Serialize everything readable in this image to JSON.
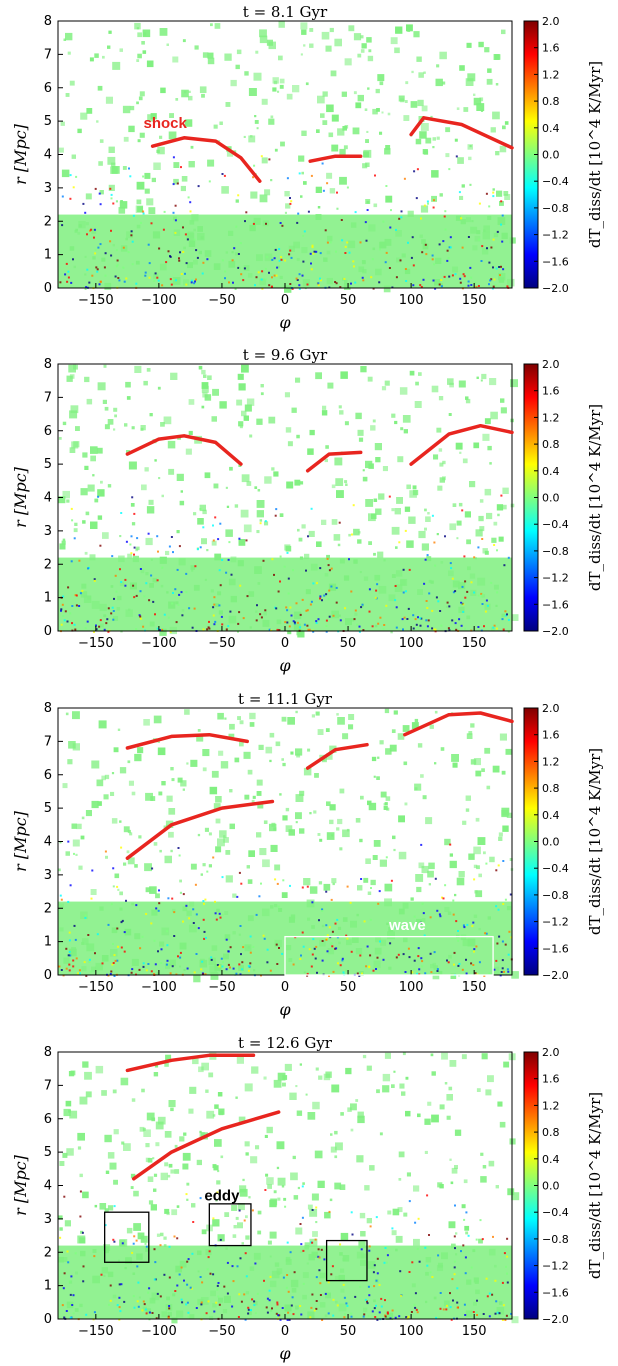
{
  "chart_data": [
    {
      "type": "scatter",
      "title": "t = 8.1 Gyr",
      "xlabel": "φ",
      "ylabel": "r [Mpc]",
      "xlim": [
        -180,
        180
      ],
      "ylim": [
        0,
        8
      ],
      "xticks": [
        "-150",
        "-100",
        "-50",
        "0",
        "50",
        "100",
        "150"
      ],
      "yticks": [
        "0",
        "1",
        "2",
        "3",
        "4",
        "5",
        "6",
        "7",
        "8"
      ],
      "colorbar": {
        "label": "dT_diss/dt [10^4 K/Myr]",
        "range": [
          -2.0,
          2.0
        ],
        "ticks": [
          "2.0",
          "1.6",
          "1.2",
          "0.8",
          "0.4",
          "0.0",
          "-0.4",
          "-0.8",
          "-1.2",
          "-1.6",
          "-2.0"
        ]
      },
      "shock_fronts": [
        {
          "x": [
            -105,
            -80,
            -55,
            -35,
            -20
          ],
          "y": [
            4.25,
            4.5,
            4.4,
            3.9,
            3.2
          ]
        },
        {
          "x": [
            20,
            40,
            60
          ],
          "y": [
            3.8,
            3.95,
            3.95
          ]
        },
        {
          "x": [
            100,
            110,
            140,
            180
          ],
          "y": [
            4.6,
            5.1,
            4.9,
            4.2
          ]
        }
      ],
      "annotations": [
        {
          "text": "shock",
          "x": -95,
          "y": 4.8,
          "color": "#e8251f"
        }
      ],
      "boxes": []
    },
    {
      "type": "scatter",
      "title": "t = 9.6 Gyr",
      "xlabel": "φ",
      "ylabel": "r [Mpc]",
      "xlim": [
        -180,
        180
      ],
      "ylim": [
        0,
        8
      ],
      "xticks": [
        "-150",
        "-100",
        "-50",
        "0",
        "50",
        "100",
        "150"
      ],
      "yticks": [
        "0",
        "1",
        "2",
        "3",
        "4",
        "5",
        "6",
        "7",
        "8"
      ],
      "colorbar": {
        "label": "dT_diss/dt [10^4 K/Myr]",
        "range": [
          -2.0,
          2.0
        ],
        "ticks": [
          "2.0",
          "1.6",
          "1.2",
          "0.8",
          "0.4",
          "0.0",
          "-0.4",
          "-0.8",
          "-1.2",
          "-1.6",
          "-2.0"
        ]
      },
      "shock_fronts": [
        {
          "x": [
            -125,
            -100,
            -80,
            -55,
            -35
          ],
          "y": [
            5.3,
            5.75,
            5.85,
            5.65,
            5.0
          ]
        },
        {
          "x": [
            18,
            35,
            60
          ],
          "y": [
            4.8,
            5.3,
            5.35
          ]
        },
        {
          "x": [
            100,
            130,
            155,
            180
          ],
          "y": [
            5.0,
            5.9,
            6.15,
            5.95
          ]
        }
      ],
      "annotations": [],
      "boxes": []
    },
    {
      "type": "scatter",
      "title": "t = 11.1 Gyr",
      "xlabel": "φ",
      "ylabel": "r [Mpc]",
      "xlim": [
        -180,
        180
      ],
      "ylim": [
        0,
        8
      ],
      "xticks": [
        "-150",
        "-100",
        "-50",
        "0",
        "50",
        "100",
        "150"
      ],
      "yticks": [
        "0",
        "1",
        "2",
        "3",
        "4",
        "5",
        "6",
        "7",
        "8"
      ],
      "colorbar": {
        "label": "dT_diss/dt [10^4 K/Myr]",
        "range": [
          -2.0,
          2.0
        ],
        "ticks": [
          "2.0",
          "1.6",
          "1.2",
          "0.8",
          "0.4",
          "0.0",
          "-0.4",
          "-0.8",
          "-1.2",
          "-1.6",
          "-2.0"
        ]
      },
      "shock_fronts": [
        {
          "x": [
            -125,
            -90,
            -60,
            -30
          ],
          "y": [
            6.8,
            7.15,
            7.2,
            7.0
          ]
        },
        {
          "x": [
            -125,
            -90,
            -50,
            -10
          ],
          "y": [
            3.5,
            4.5,
            5.0,
            5.2
          ]
        },
        {
          "x": [
            18,
            40,
            65
          ],
          "y": [
            6.2,
            6.75,
            6.9
          ]
        },
        {
          "x": [
            95,
            130,
            155,
            180
          ],
          "y": [
            7.2,
            7.8,
            7.85,
            7.6
          ]
        }
      ],
      "annotations": [
        {
          "text": "wave",
          "x": 97,
          "y": 1.35,
          "color": "#ffffff"
        }
      ],
      "boxes": [
        {
          "x0": 0,
          "x1": 165,
          "y0": 0,
          "y1": 1.15,
          "color": "#ffffff"
        }
      ]
    },
    {
      "type": "scatter",
      "title": "t = 12.6 Gyr",
      "xlabel": "φ",
      "ylabel": "r [Mpc]",
      "xlim": [
        -180,
        180
      ],
      "ylim": [
        0,
        8
      ],
      "xticks": [
        "-150",
        "-100",
        "-50",
        "0",
        "50",
        "100",
        "150"
      ],
      "yticks": [
        "0",
        "1",
        "2",
        "3",
        "4",
        "5",
        "6",
        "7",
        "8"
      ],
      "colorbar": {
        "label": "dT_diss/dt [10^4 K/Myr]",
        "range": [
          -2.0,
          2.0
        ],
        "ticks": [
          "2.0",
          "1.6",
          "1.2",
          "0.8",
          "0.4",
          "0.0",
          "-0.4",
          "-0.8",
          "-1.2",
          "-1.6",
          "-2.0"
        ]
      },
      "shock_fronts": [
        {
          "x": [
            -125,
            -90,
            -60,
            -25
          ],
          "y": [
            7.45,
            7.75,
            7.9,
            7.9
          ]
        },
        {
          "x": [
            -120,
            -90,
            -50,
            -5
          ],
          "y": [
            4.2,
            5.0,
            5.7,
            6.2
          ]
        }
      ],
      "annotations": [
        {
          "text": "eddy",
          "x": -50,
          "y": 3.55,
          "color": "#000000"
        }
      ],
      "boxes": [
        {
          "x0": -143,
          "x1": -108,
          "y0": 1.7,
          "y1": 3.2,
          "color": "#000000"
        },
        {
          "x0": -60,
          "x1": -27,
          "y0": 2.2,
          "y1": 3.45,
          "color": "#000000"
        },
        {
          "x0": 33,
          "x1": 65,
          "y0": 1.15,
          "y1": 2.35,
          "color": "#000000"
        }
      ]
    }
  ],
  "colors": {
    "background_particles": "#7ff07f",
    "shock_line": "#e8251f",
    "colormap": [
      "#00007f",
      "#0000ff",
      "#007fff",
      "#00ffff",
      "#7fff7f",
      "#ffff00",
      "#ff7f00",
      "#ff0000",
      "#7f0000"
    ]
  }
}
